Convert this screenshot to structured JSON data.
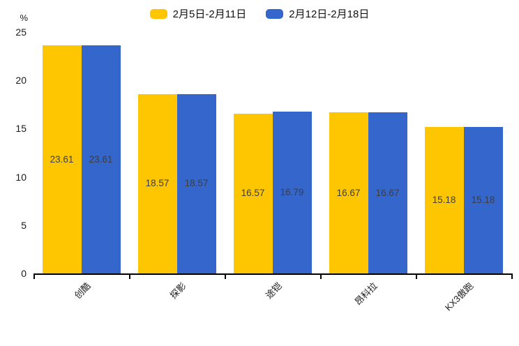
{
  "chart_data": {
    "type": "bar",
    "title": "",
    "xlabel": "",
    "ylabel": "%",
    "ylim": [
      0,
      25
    ],
    "yticks": [
      0,
      5,
      10,
      15,
      20,
      25
    ],
    "grid": false,
    "legend_position": "top-center",
    "value_labels": true,
    "value_label_color": "#3d3d3d",
    "categories": [
      "创酷",
      "探影",
      "途铠",
      "昂科拉",
      "KX3傲跑"
    ],
    "series": [
      {
        "name": "2月5日-2月11日",
        "color": "#FDC600",
        "values": [
          23.61,
          18.57,
          16.57,
          16.67,
          15.18
        ]
      },
      {
        "name": "2月12日-2月18日",
        "color": "#3566CB",
        "values": [
          23.61,
          18.57,
          16.79,
          16.67,
          15.18
        ]
      }
    ]
  }
}
